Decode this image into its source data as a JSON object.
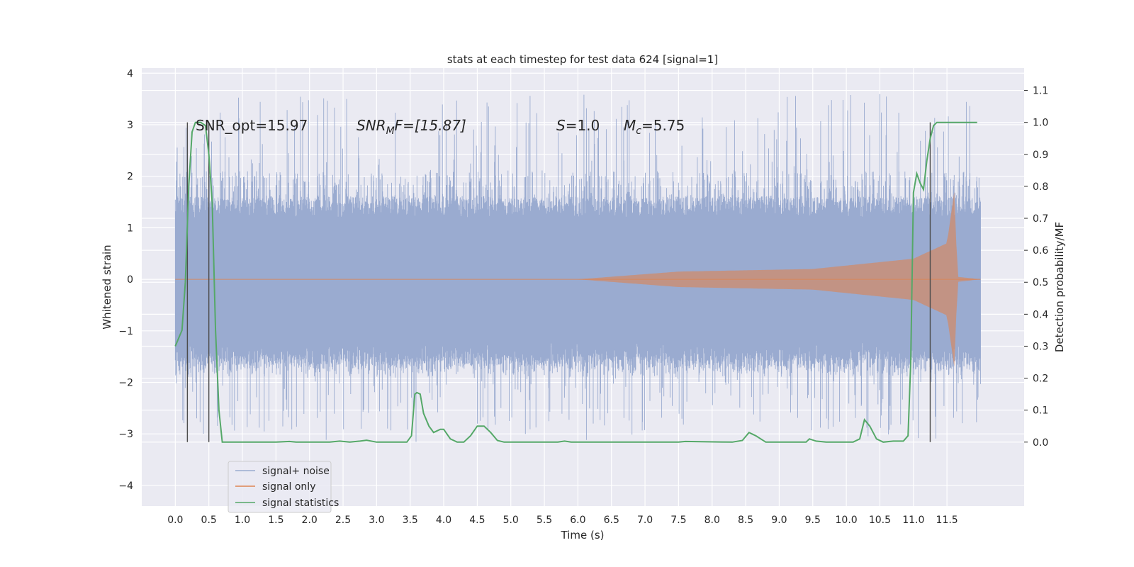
{
  "chart_data": {
    "type": "line",
    "title": "stats at each timestep for test data 624 [signal=1]",
    "xlabel": "Time (s)",
    "ylabel_left": "Whitened strain",
    "ylabel_right": "Detection probability/MF",
    "xlim": [
      -0.5,
      12.65
    ],
    "ylim_left": [
      -4.4,
      4.1
    ],
    "ylim_right": [
      -0.2,
      1.17
    ],
    "xticks": [
      "0.0",
      "0.5",
      "1.0",
      "1.5",
      "2.0",
      "2.5",
      "3.0",
      "3.5",
      "4.0",
      "4.5",
      "5.0",
      "5.5",
      "6.0",
      "6.5",
      "7.0",
      "7.5",
      "8.0",
      "8.5",
      "9.0",
      "9.5",
      "10.0",
      "10.5",
      "11.0",
      "11.5"
    ],
    "yticks_left": [
      "4",
      "3",
      "2",
      "1",
      "0",
      "−1",
      "−2",
      "−3",
      "−4"
    ],
    "yticks_right": [
      "1.1",
      "1.0",
      "0.9",
      "0.8",
      "0.7",
      "0.6",
      "0.5",
      "0.4",
      "0.3",
      "0.2",
      "0.1",
      "0.0"
    ],
    "grid": true,
    "legend_placement": "lower-left",
    "colors": {
      "background": "#eaeaf2",
      "grid": "#ffffff",
      "noise": "#9aabd0",
      "signal": "#dd8452",
      "stat": "#55a868",
      "vline": "#4c4c4c"
    },
    "annotations": {
      "snr_opt": "SNR_opt=15.97",
      "snr_mf": "SNR",
      "snr_mf_sub": "M",
      "snr_mf_rest": "F=[15.87]",
      "s_label": "S",
      "s_value": "=1.0",
      "mc_label": "M",
      "mc_sub": "c",
      "mc_value": "=5.75"
    },
    "series": [
      {
        "name": "signal+ noise",
        "x_range": [
          0.0,
          12.0
        ],
        "envelope_typical": 1.4,
        "envelope_peak": 3.6
      },
      {
        "name": "signal only",
        "x_range": [
          0.0,
          12.0
        ],
        "envelope_points": [
          [
            0.0,
            0.0
          ],
          [
            6.0,
            0.0
          ],
          [
            7.5,
            0.15
          ],
          [
            9.5,
            0.2
          ],
          [
            11.0,
            0.4
          ],
          [
            11.5,
            0.7
          ],
          [
            11.62,
            1.8
          ],
          [
            11.65,
            0.05
          ],
          [
            12.0,
            0.0
          ]
        ]
      },
      {
        "name": "signal statistics",
        "axis": "right",
        "points": [
          [
            0.0,
            0.3
          ],
          [
            0.1,
            0.35
          ],
          [
            0.15,
            0.5
          ],
          [
            0.2,
            0.8
          ],
          [
            0.25,
            0.97
          ],
          [
            0.3,
            1.0
          ],
          [
            0.38,
            1.0
          ],
          [
            0.45,
            0.99
          ],
          [
            0.5,
            0.9
          ],
          [
            0.55,
            0.75
          ],
          [
            0.6,
            0.35
          ],
          [
            0.65,
            0.1
          ],
          [
            0.7,
            0.0
          ],
          [
            1.5,
            0.0
          ],
          [
            1.7,
            0.002
          ],
          [
            1.8,
            0.0
          ],
          [
            2.3,
            0.0
          ],
          [
            2.45,
            0.003
          ],
          [
            2.6,
            0.0
          ],
          [
            2.75,
            0.003
          ],
          [
            2.85,
            0.006
          ],
          [
            3.0,
            0.0
          ],
          [
            3.45,
            0.0
          ],
          [
            3.52,
            0.02
          ],
          [
            3.57,
            0.15
          ],
          [
            3.6,
            0.155
          ],
          [
            3.65,
            0.15
          ],
          [
            3.7,
            0.09
          ],
          [
            3.78,
            0.05
          ],
          [
            3.85,
            0.03
          ],
          [
            3.95,
            0.04
          ],
          [
            4.0,
            0.04
          ],
          [
            4.1,
            0.01
          ],
          [
            4.2,
            0.0
          ],
          [
            4.3,
            0.0
          ],
          [
            4.4,
            0.02
          ],
          [
            4.5,
            0.05
          ],
          [
            4.6,
            0.05
          ],
          [
            4.7,
            0.03
          ],
          [
            4.8,
            0.005
          ],
          [
            4.9,
            0.0
          ],
          [
            5.7,
            0.0
          ],
          [
            5.8,
            0.003
          ],
          [
            5.9,
            0.0
          ],
          [
            7.5,
            0.0
          ],
          [
            7.6,
            0.002
          ],
          [
            8.3,
            0.0
          ],
          [
            8.45,
            0.005
          ],
          [
            8.55,
            0.03
          ],
          [
            8.65,
            0.02
          ],
          [
            8.8,
            0.0
          ],
          [
            9.4,
            0.0
          ],
          [
            9.45,
            0.01
          ],
          [
            9.55,
            0.003
          ],
          [
            9.7,
            0.0
          ],
          [
            10.1,
            0.0
          ],
          [
            10.2,
            0.01
          ],
          [
            10.27,
            0.07
          ],
          [
            10.35,
            0.05
          ],
          [
            10.45,
            0.01
          ],
          [
            10.55,
            0.0
          ],
          [
            10.7,
            0.003
          ],
          [
            10.85,
            0.003
          ],
          [
            10.92,
            0.02
          ],
          [
            10.96,
            0.25
          ],
          [
            11.0,
            0.78
          ],
          [
            11.05,
            0.84
          ],
          [
            11.1,
            0.81
          ],
          [
            11.15,
            0.79
          ],
          [
            11.2,
            0.88
          ],
          [
            11.25,
            0.95
          ],
          [
            11.3,
            0.99
          ],
          [
            11.35,
            1.0
          ],
          [
            11.5,
            1.0
          ],
          [
            11.95,
            1.0
          ]
        ]
      }
    ],
    "vlines_x": [
      0.18,
      0.5,
      11.25
    ],
    "legend": [
      "signal+ noise",
      "signal only",
      "signal statistics"
    ]
  }
}
